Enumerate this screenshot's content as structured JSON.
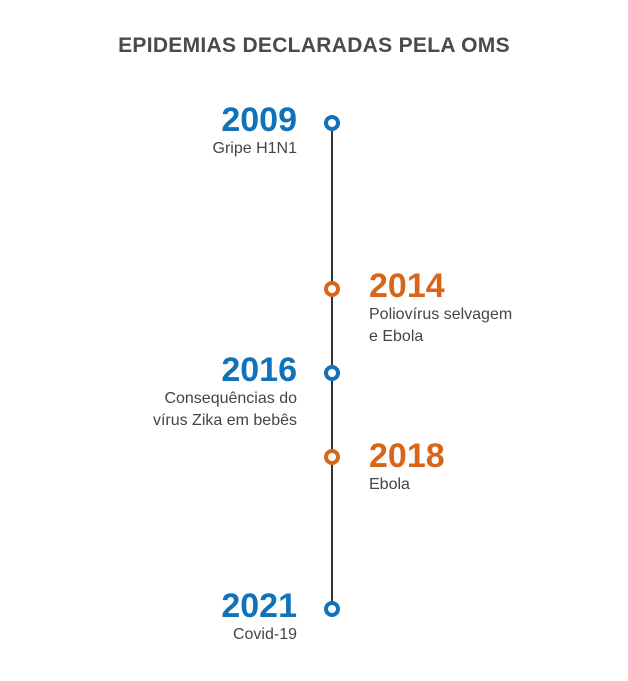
{
  "title": "EPIDEMIAS DECLARADAS PELA OMS",
  "colors": {
    "blue": "#1072b8",
    "orange": "#d9651b",
    "line": "#333333",
    "text": "#444444"
  },
  "events": [
    {
      "year": "2009",
      "description": "Gripe H1N1",
      "side": "left",
      "color": "blue"
    },
    {
      "year": "2014",
      "description": "Poliovírus selvagem\ne Ebola",
      "side": "right",
      "color": "orange"
    },
    {
      "year": "2016",
      "description": "Consequências do\nvírus Zika em bebês",
      "side": "left",
      "color": "blue"
    },
    {
      "year": "2018",
      "description": "Ebola",
      "side": "right",
      "color": "orange"
    },
    {
      "year": "2021",
      "description": "Covid-19",
      "side": "left",
      "color": "blue"
    }
  ]
}
